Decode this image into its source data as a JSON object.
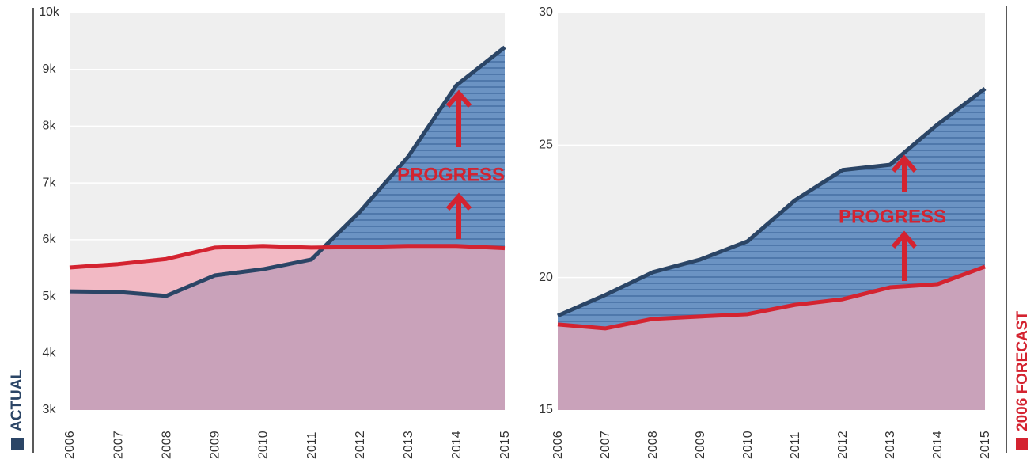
{
  "chart_data": [
    {
      "type": "area",
      "x": [
        "2006",
        "2007",
        "2008",
        "2009",
        "2010",
        "2011",
        "2012",
        "2013",
        "2014",
        "2015"
      ],
      "series": [
        {
          "name": "ACTUAL",
          "color": "#2b4566",
          "fill": "#6b93c3",
          "values": [
            5090,
            5080,
            5010,
            5370,
            5480,
            5650,
            6490,
            7460,
            8720,
            9390
          ]
        },
        {
          "name": "2006 FORECAST",
          "color": "#d42330",
          "fill": "#f2b9c4",
          "values": [
            5510,
            5570,
            5660,
            5860,
            5890,
            5860,
            5870,
            5890,
            5890,
            5850
          ]
        }
      ],
      "ylim": [
        3000,
        10000
      ],
      "yticks": [
        {
          "value": 3000,
          "label": "3k"
        },
        {
          "value": 4000,
          "label": "4k"
        },
        {
          "value": 5000,
          "label": "5k"
        },
        {
          "value": 6000,
          "label": "6k"
        },
        {
          "value": 7000,
          "label": "7k"
        },
        {
          "value": 8000,
          "label": "8k"
        },
        {
          "value": 9000,
          "label": "9k"
        },
        {
          "value": 10000,
          "label": "10k"
        }
      ],
      "grid": true,
      "overlap_color": "#c9a2ba",
      "annotation": "PROGRESS"
    },
    {
      "type": "area",
      "x": [
        "2006",
        "2007",
        "2008",
        "2009",
        "2010",
        "2011",
        "2012",
        "2013",
        "2014",
        "2015"
      ],
      "series": [
        {
          "name": "ACTUAL",
          "color": "#2b4566",
          "fill": "#6b93c3",
          "values": [
            18.56,
            19.34,
            20.2,
            20.68,
            21.37,
            22.92,
            24.06,
            24.26,
            25.78,
            27.13
          ]
        },
        {
          "name": "2006 FORECAST",
          "color": "#d42330",
          "fill": "#f2b9c4",
          "values": [
            18.23,
            18.08,
            18.44,
            18.53,
            18.62,
            18.97,
            19.18,
            19.63,
            19.75,
            20.41
          ]
        }
      ],
      "ylim": [
        15,
        30
      ],
      "yticks": [
        15,
        20,
        25,
        30
      ],
      "grid": true,
      "overlap_color": "#c9a2ba",
      "annotation": "PROGRESS"
    }
  ]
}
